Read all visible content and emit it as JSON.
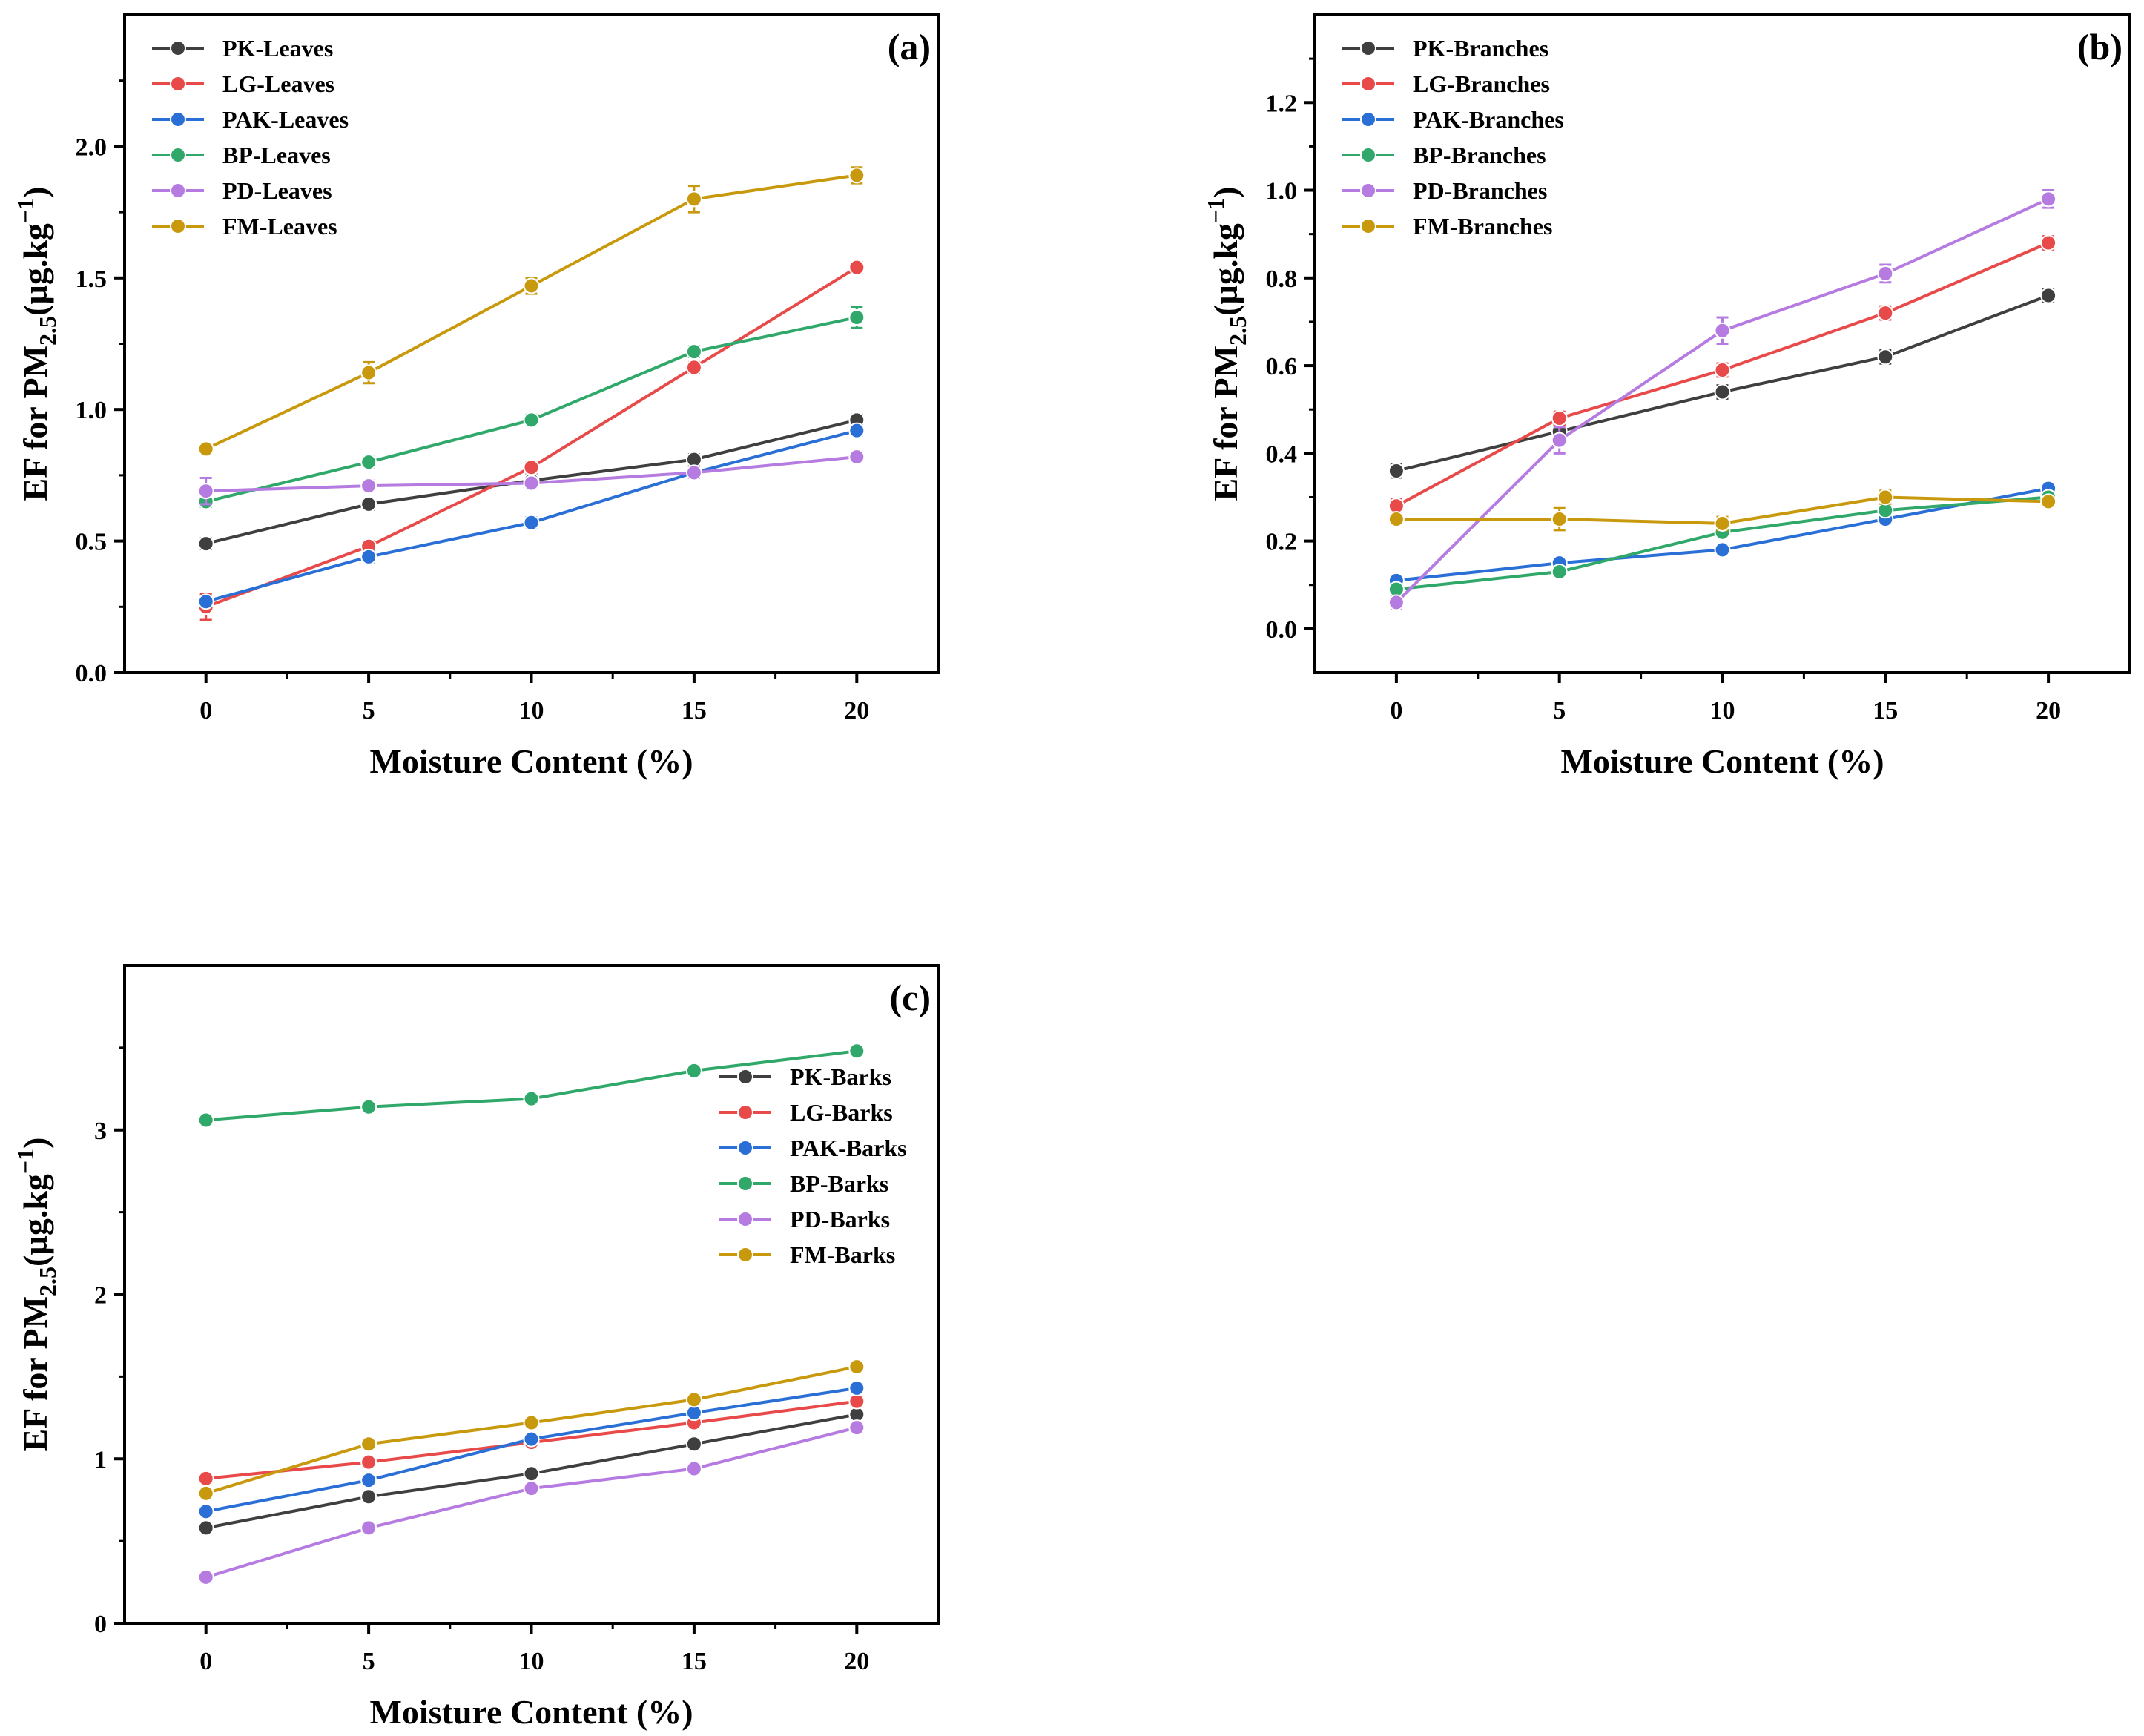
{
  "chart_data": [
    {
      "type": "line",
      "panel_label": "(a)",
      "xlabel": "Moisture Content (%)",
      "ylabel": "EF for PM2.5(µg.kg⁻¹)",
      "ylabel_parts": {
        "main": "EF for PM",
        "sub": "2.5",
        "unit": "(µg.kg",
        "sup": "−1",
        "close": ")"
      },
      "x": [
        0,
        5,
        10,
        15,
        20
      ],
      "xlim": [
        -2.5,
        22.5
      ],
      "ylim": [
        0,
        2.5
      ],
      "xticks": [
        0,
        5,
        10,
        15,
        20
      ],
      "yticks": [
        0.0,
        0.5,
        1.0,
        1.5,
        2.0
      ],
      "ytick_labels": [
        "0.0",
        "0.5",
        "1.0",
        "1.5",
        "2.0"
      ],
      "legend_position": "top-left",
      "series": [
        {
          "name": "PK-Leaves",
          "color": "#3f3f3f",
          "values": [
            0.49,
            0.64,
            0.73,
            0.81,
            0.96
          ],
          "errors": [
            0.02,
            0.02,
            0.02,
            0.02,
            0.02
          ]
        },
        {
          "name": "LG-Leaves",
          "color": "#e84a4a",
          "values": [
            0.25,
            0.48,
            0.78,
            1.16,
            1.54
          ],
          "errors": [
            0.05,
            0.02,
            0.02,
            0.02,
            0.02
          ]
        },
        {
          "name": "PAK-Leaves",
          "color": "#2a6fd6",
          "values": [
            0.27,
            0.44,
            0.57,
            0.76,
            0.92
          ],
          "errors": [
            0.02,
            0.02,
            0.02,
            0.02,
            0.02
          ]
        },
        {
          "name": "BP-Leaves",
          "color": "#2fa86a",
          "values": [
            0.65,
            0.8,
            0.96,
            1.22,
            1.35
          ],
          "errors": [
            0.02,
            0.02,
            0.02,
            0.02,
            0.04
          ]
        },
        {
          "name": "PD-Leaves",
          "color": "#b57be0",
          "values": [
            0.69,
            0.71,
            0.72,
            0.76,
            0.82
          ],
          "errors": [
            0.05,
            0.02,
            0.02,
            0.02,
            0.02
          ]
        },
        {
          "name": "FM-Leaves",
          "color": "#c9990d",
          "values": [
            0.85,
            1.14,
            1.47,
            1.8,
            1.89
          ],
          "errors": [
            0.02,
            0.04,
            0.03,
            0.05,
            0.03
          ]
        }
      ]
    },
    {
      "type": "line",
      "panel_label": "(b)",
      "xlabel": "Moisture Content (%)",
      "ylabel": "EF for PM2.5(µg.kg⁻¹)",
      "ylabel_parts": {
        "main": "EF for PM",
        "sub": "2.5",
        "unit": "(µg.kg",
        "sup": "−1",
        "close": ")"
      },
      "x": [
        0,
        5,
        10,
        15,
        20
      ],
      "xlim": [
        -2.5,
        22.5
      ],
      "ylim": [
        -0.1,
        1.4
      ],
      "xticks": [
        0,
        5,
        10,
        15,
        20
      ],
      "yticks": [
        0.0,
        0.2,
        0.4,
        0.6,
        0.8,
        1.0,
        1.2
      ],
      "ytick_labels": [
        "0.0",
        "0.2",
        "0.4",
        "0.6",
        "0.8",
        "1.0",
        "1.2"
      ],
      "legend_position": "top-left",
      "series": [
        {
          "name": "PK-Branches",
          "color": "#3f3f3f",
          "values": [
            0.36,
            0.45,
            0.54,
            0.62,
            0.76
          ],
          "errors": [
            0.015,
            0.015,
            0.015,
            0.015,
            0.015
          ]
        },
        {
          "name": "LG-Branches",
          "color": "#e84a4a",
          "values": [
            0.28,
            0.48,
            0.59,
            0.72,
            0.88
          ],
          "errors": [
            0.015,
            0.015,
            0.015,
            0.015,
            0.015
          ]
        },
        {
          "name": "PAK-Branches",
          "color": "#2a6fd6",
          "values": [
            0.11,
            0.15,
            0.18,
            0.25,
            0.32
          ],
          "errors": [
            0.01,
            0.01,
            0.01,
            0.01,
            0.01
          ]
        },
        {
          "name": "BP-Branches",
          "color": "#2fa86a",
          "values": [
            0.09,
            0.13,
            0.22,
            0.27,
            0.3
          ],
          "errors": [
            0.01,
            0.01,
            0.01,
            0.01,
            0.01
          ]
        },
        {
          "name": "PD-Branches",
          "color": "#b57be0",
          "values": [
            0.06,
            0.43,
            0.68,
            0.81,
            0.98
          ],
          "errors": [
            0.015,
            0.03,
            0.03,
            0.02,
            0.02
          ]
        },
        {
          "name": "FM-Branches",
          "color": "#c9990d",
          "values": [
            0.25,
            0.25,
            0.24,
            0.3,
            0.29
          ],
          "errors": [
            0.01,
            0.025,
            0.015,
            0.015,
            0.01
          ]
        }
      ]
    },
    {
      "type": "line",
      "panel_label": "(c)",
      "xlabel": "Moisture Content (%)",
      "ylabel": "EF for PM2.5(µg.kg⁻¹)",
      "ylabel_parts": {
        "main": "EF for PM",
        "sub": "2.5",
        "unit": "(µg.kg",
        "sup": "−1",
        "close": ")"
      },
      "x": [
        0,
        5,
        10,
        15,
        20
      ],
      "xlim": [
        -2.5,
        22.5
      ],
      "ylim": [
        0,
        4.0
      ],
      "xticks": [
        0,
        5,
        10,
        15,
        20
      ],
      "yticks": [
        0,
        1,
        2,
        3
      ],
      "ytick_labels": [
        "0",
        "1",
        "2",
        "3"
      ],
      "legend_position": "right",
      "series": [
        {
          "name": "PK-Barks",
          "color": "#3f3f3f",
          "values": [
            0.58,
            0.77,
            0.91,
            1.09,
            1.27
          ],
          "errors": [
            0.02,
            0.02,
            0.02,
            0.02,
            0.02
          ]
        },
        {
          "name": "LG-Barks",
          "color": "#e84a4a",
          "values": [
            0.88,
            0.98,
            1.1,
            1.22,
            1.35
          ],
          "errors": [
            0.02,
            0.02,
            0.02,
            0.02,
            0.02
          ]
        },
        {
          "name": "PAK-Barks",
          "color": "#2a6fd6",
          "values": [
            0.68,
            0.87,
            1.12,
            1.28,
            1.43
          ],
          "errors": [
            0.02,
            0.02,
            0.02,
            0.02,
            0.02
          ]
        },
        {
          "name": "BP-Barks",
          "color": "#2fa86a",
          "values": [
            3.06,
            3.14,
            3.19,
            3.36,
            3.48
          ],
          "errors": [
            0.02,
            0.02,
            0.02,
            0.02,
            0.02
          ]
        },
        {
          "name": "PD-Barks",
          "color": "#b57be0",
          "values": [
            0.28,
            0.58,
            0.82,
            0.94,
            1.19
          ],
          "errors": [
            0.03,
            0.02,
            0.02,
            0.02,
            0.02
          ]
        },
        {
          "name": "FM-Barks",
          "color": "#c9990d",
          "values": [
            0.79,
            1.09,
            1.22,
            1.36,
            1.56
          ],
          "errors": [
            0.02,
            0.02,
            0.02,
            0.02,
            0.02
          ]
        }
      ]
    }
  ]
}
